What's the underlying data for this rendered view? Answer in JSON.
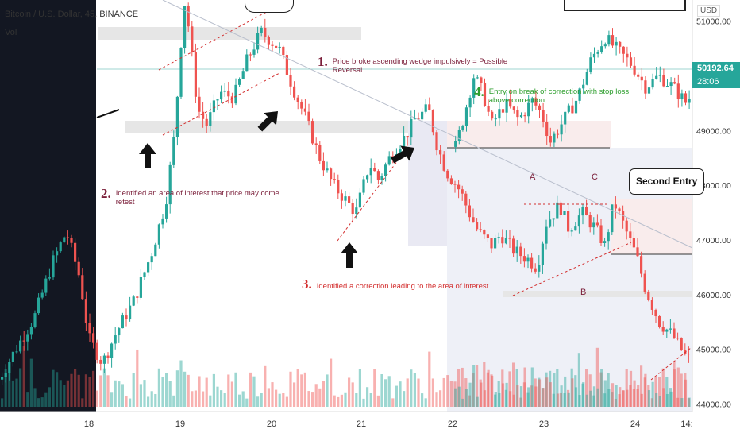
{
  "header": {
    "symbol": "Bitcoin / U.S. Dollar, 45, BINANCE",
    "vol_label": "Vol",
    "currency": "USD"
  },
  "last_price": {
    "value": "50192.64",
    "countdown": "28:06"
  },
  "annotations": {
    "a1_num": "1.",
    "a1_text": "Price broke ascending wedge impulsively = Possible Reversal",
    "a2_num": "2.",
    "a2_text": "Identified an area of interest that price may come retest",
    "a3_num": "3.",
    "a3_text": "Identified a correction leading to the area of interest",
    "a4_num": "4.",
    "a4_text": "Entry on break of correction with stop loss above correction",
    "label_a": "A",
    "label_b": "B",
    "label_c": "C",
    "second_entry": "Second Entry"
  },
  "colors": {
    "up": "#26a69a",
    "down": "#ef5350",
    "annotation_dark": "#7b1f3a",
    "annotation_red": "#d32f2f",
    "annotation_green": "#2e9e2e"
  },
  "chart_data": {
    "type": "candlestick",
    "x_ticks": [
      "18",
      "19",
      "20",
      "21",
      "22",
      "23",
      "24",
      "14:"
    ],
    "y_ticks": [
      "51000.00",
      "50000.00",
      "49000.00",
      "48000.00",
      "47000.00",
      "46000.00",
      "45000.00",
      "44000.00"
    ],
    "ylim": [
      43950,
      51350
    ],
    "price_path": [
      [
        17.0,
        44450
      ],
      [
        17.4,
        45600
      ],
      [
        17.6,
        46600
      ],
      [
        17.75,
        47150
      ],
      [
        17.9,
        46300
      ],
      [
        18.0,
        45200
      ],
      [
        18.15,
        44750
      ],
      [
        18.3,
        45300
      ],
      [
        18.5,
        45900
      ],
      [
        18.7,
        46800
      ],
      [
        18.85,
        47700
      ],
      [
        18.95,
        49000
      ],
      [
        19.0,
        50200
      ],
      [
        19.05,
        51400
      ],
      [
        19.1,
        50900
      ],
      [
        19.2,
        49400
      ],
      [
        19.3,
        49100
      ],
      [
        19.45,
        49700
      ],
      [
        19.6,
        49600
      ],
      [
        19.75,
        50300
      ],
      [
        19.9,
        50800
      ],
      [
        20.1,
        50500
      ],
      [
        20.25,
        49800
      ],
      [
        20.4,
        49200
      ],
      [
        20.55,
        48500
      ],
      [
        20.7,
        48000
      ],
      [
        20.8,
        47800
      ],
      [
        20.95,
        47500
      ],
      [
        21.1,
        48400
      ],
      [
        21.2,
        48100
      ],
      [
        21.35,
        48600
      ],
      [
        21.5,
        48900
      ],
      [
        21.6,
        49200
      ],
      [
        21.75,
        49400
      ],
      [
        21.85,
        48700
      ],
      [
        21.95,
        48250
      ],
      [
        22.1,
        47900
      ],
      [
        22.2,
        47500
      ],
      [
        22.3,
        47150
      ],
      [
        22.45,
        46900
      ],
      [
        22.55,
        47100
      ],
      [
        22.7,
        46800
      ],
      [
        22.85,
        46650
      ],
      [
        22.95,
        46500
      ],
      [
        23.05,
        47300
      ],
      [
        23.2,
        47650
      ],
      [
        23.3,
        47200
      ],
      [
        23.45,
        47500
      ],
      [
        23.6,
        47200
      ],
      [
        23.7,
        46900
      ],
      [
        23.8,
        47700
      ],
      [
        23.9,
        47300
      ],
      [
        24.05,
        46700
      ],
      [
        24.15,
        46100
      ],
      [
        24.3,
        45500
      ],
      [
        24.45,
        45250
      ],
      [
        24.6,
        44850
      ],
      [
        24.75,
        44750
      ],
      [
        24.9,
        45100
      ],
      [
        25.1,
        45400
      ],
      [
        25.25,
        45750
      ]
    ],
    "price_path_right_window": [
      [
        21.05,
        48700
      ],
      [
        21.15,
        49300
      ],
      [
        21.25,
        50000
      ],
      [
        21.35,
        49700
      ],
      [
        21.45,
        49100
      ],
      [
        21.6,
        49500
      ],
      [
        21.75,
        49200
      ],
      [
        21.9,
        49550
      ],
      [
        22.0,
        49300
      ],
      [
        22.1,
        48800
      ],
      [
        22.25,
        49200
      ],
      [
        22.4,
        49600
      ],
      [
        22.55,
        50300
      ],
      [
        22.7,
        50700
      ],
      [
        22.85,
        50450
      ],
      [
        23.0,
        50200
      ],
      [
        23.15,
        49800
      ],
      [
        23.3,
        50000
      ],
      [
        23.45,
        49800
      ],
      [
        23.6,
        49500
      ],
      [
        23.75,
        49950
      ],
      [
        23.85,
        50150
      ]
    ]
  }
}
